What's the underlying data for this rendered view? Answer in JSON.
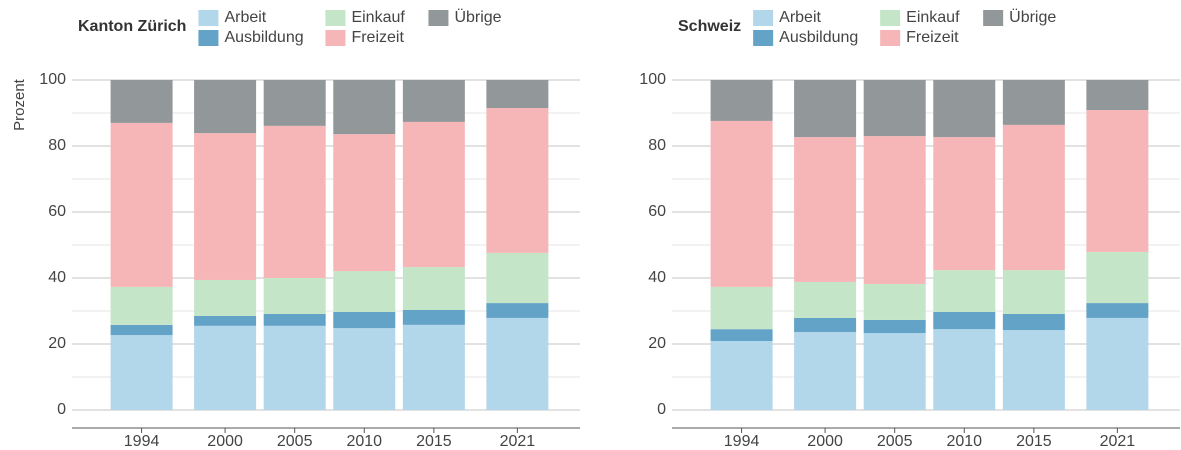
{
  "chart_data": [
    {
      "type": "stacked-bar",
      "title": "Kanton Zürich",
      "ylabel": "Prozent",
      "x": [
        1994,
        2000,
        2005,
        2010,
        2015,
        2021
      ],
      "series": [
        {
          "name": "Arbeit",
          "color": "#b3d7ea",
          "values": [
            22.7,
            25.5,
            25.5,
            24.8,
            25.8,
            27.9
          ]
        },
        {
          "name": "Ausbildung",
          "color": "#63a3c8",
          "values": [
            3.1,
            3.0,
            3.6,
            4.9,
            4.5,
            4.5
          ]
        },
        {
          "name": "Einkauf",
          "color": "#c5e5c8",
          "values": [
            11.5,
            10.9,
            10.9,
            12.4,
            13.0,
            15.2
          ]
        },
        {
          "name": "Freizeit",
          "color": "#f6b6b8",
          "values": [
            49.7,
            44.5,
            46.1,
            41.5,
            44.0,
            43.9
          ]
        },
        {
          "name": "Übrige",
          "color": "#929799",
          "values": [
            13.0,
            16.1,
            13.9,
            16.4,
            12.7,
            8.5
          ]
        }
      ],
      "xlim": [
        1989,
        2025.5
      ],
      "xticks": [
        1994,
        2000,
        2005,
        2010,
        2015,
        2021
      ],
      "ylim": [
        0,
        100
      ],
      "yticks": [
        0,
        20,
        40,
        60,
        80,
        100
      ],
      "minor_yticks": [
        10,
        30,
        50,
        70,
        90
      ],
      "grid": true
    },
    {
      "type": "stacked-bar",
      "title": "Schweiz",
      "x": [
        1994,
        2000,
        2005,
        2010,
        2015,
        2021
      ],
      "series": [
        {
          "name": "Arbeit",
          "color": "#b3d7ea",
          "values": [
            20.9,
            23.6,
            23.3,
            24.5,
            24.2,
            27.9
          ]
        },
        {
          "name": "Ausbildung",
          "color": "#63a3c8",
          "values": [
            3.6,
            4.3,
            4.0,
            5.2,
            4.9,
            4.5
          ]
        },
        {
          "name": "Einkauf",
          "color": "#c5e5c8",
          "values": [
            12.8,
            10.9,
            10.9,
            12.7,
            13.3,
            15.5
          ]
        },
        {
          "name": "Freizeit",
          "color": "#f6b6b8",
          "values": [
            50.3,
            43.9,
            44.8,
            40.3,
            44.0,
            43.0
          ]
        },
        {
          "name": "Übrige",
          "color": "#929799",
          "values": [
            12.4,
            17.3,
            17.0,
            17.3,
            13.6,
            9.1
          ]
        }
      ],
      "xlim": [
        1989,
        2025.5
      ],
      "xticks": [
        1994,
        2000,
        2005,
        2010,
        2015,
        2021
      ],
      "ylim": [
        0,
        100
      ],
      "yticks": [
        0,
        20,
        40,
        60,
        80,
        100
      ],
      "minor_yticks": [
        10,
        30,
        50,
        70,
        90
      ],
      "grid": true
    }
  ]
}
